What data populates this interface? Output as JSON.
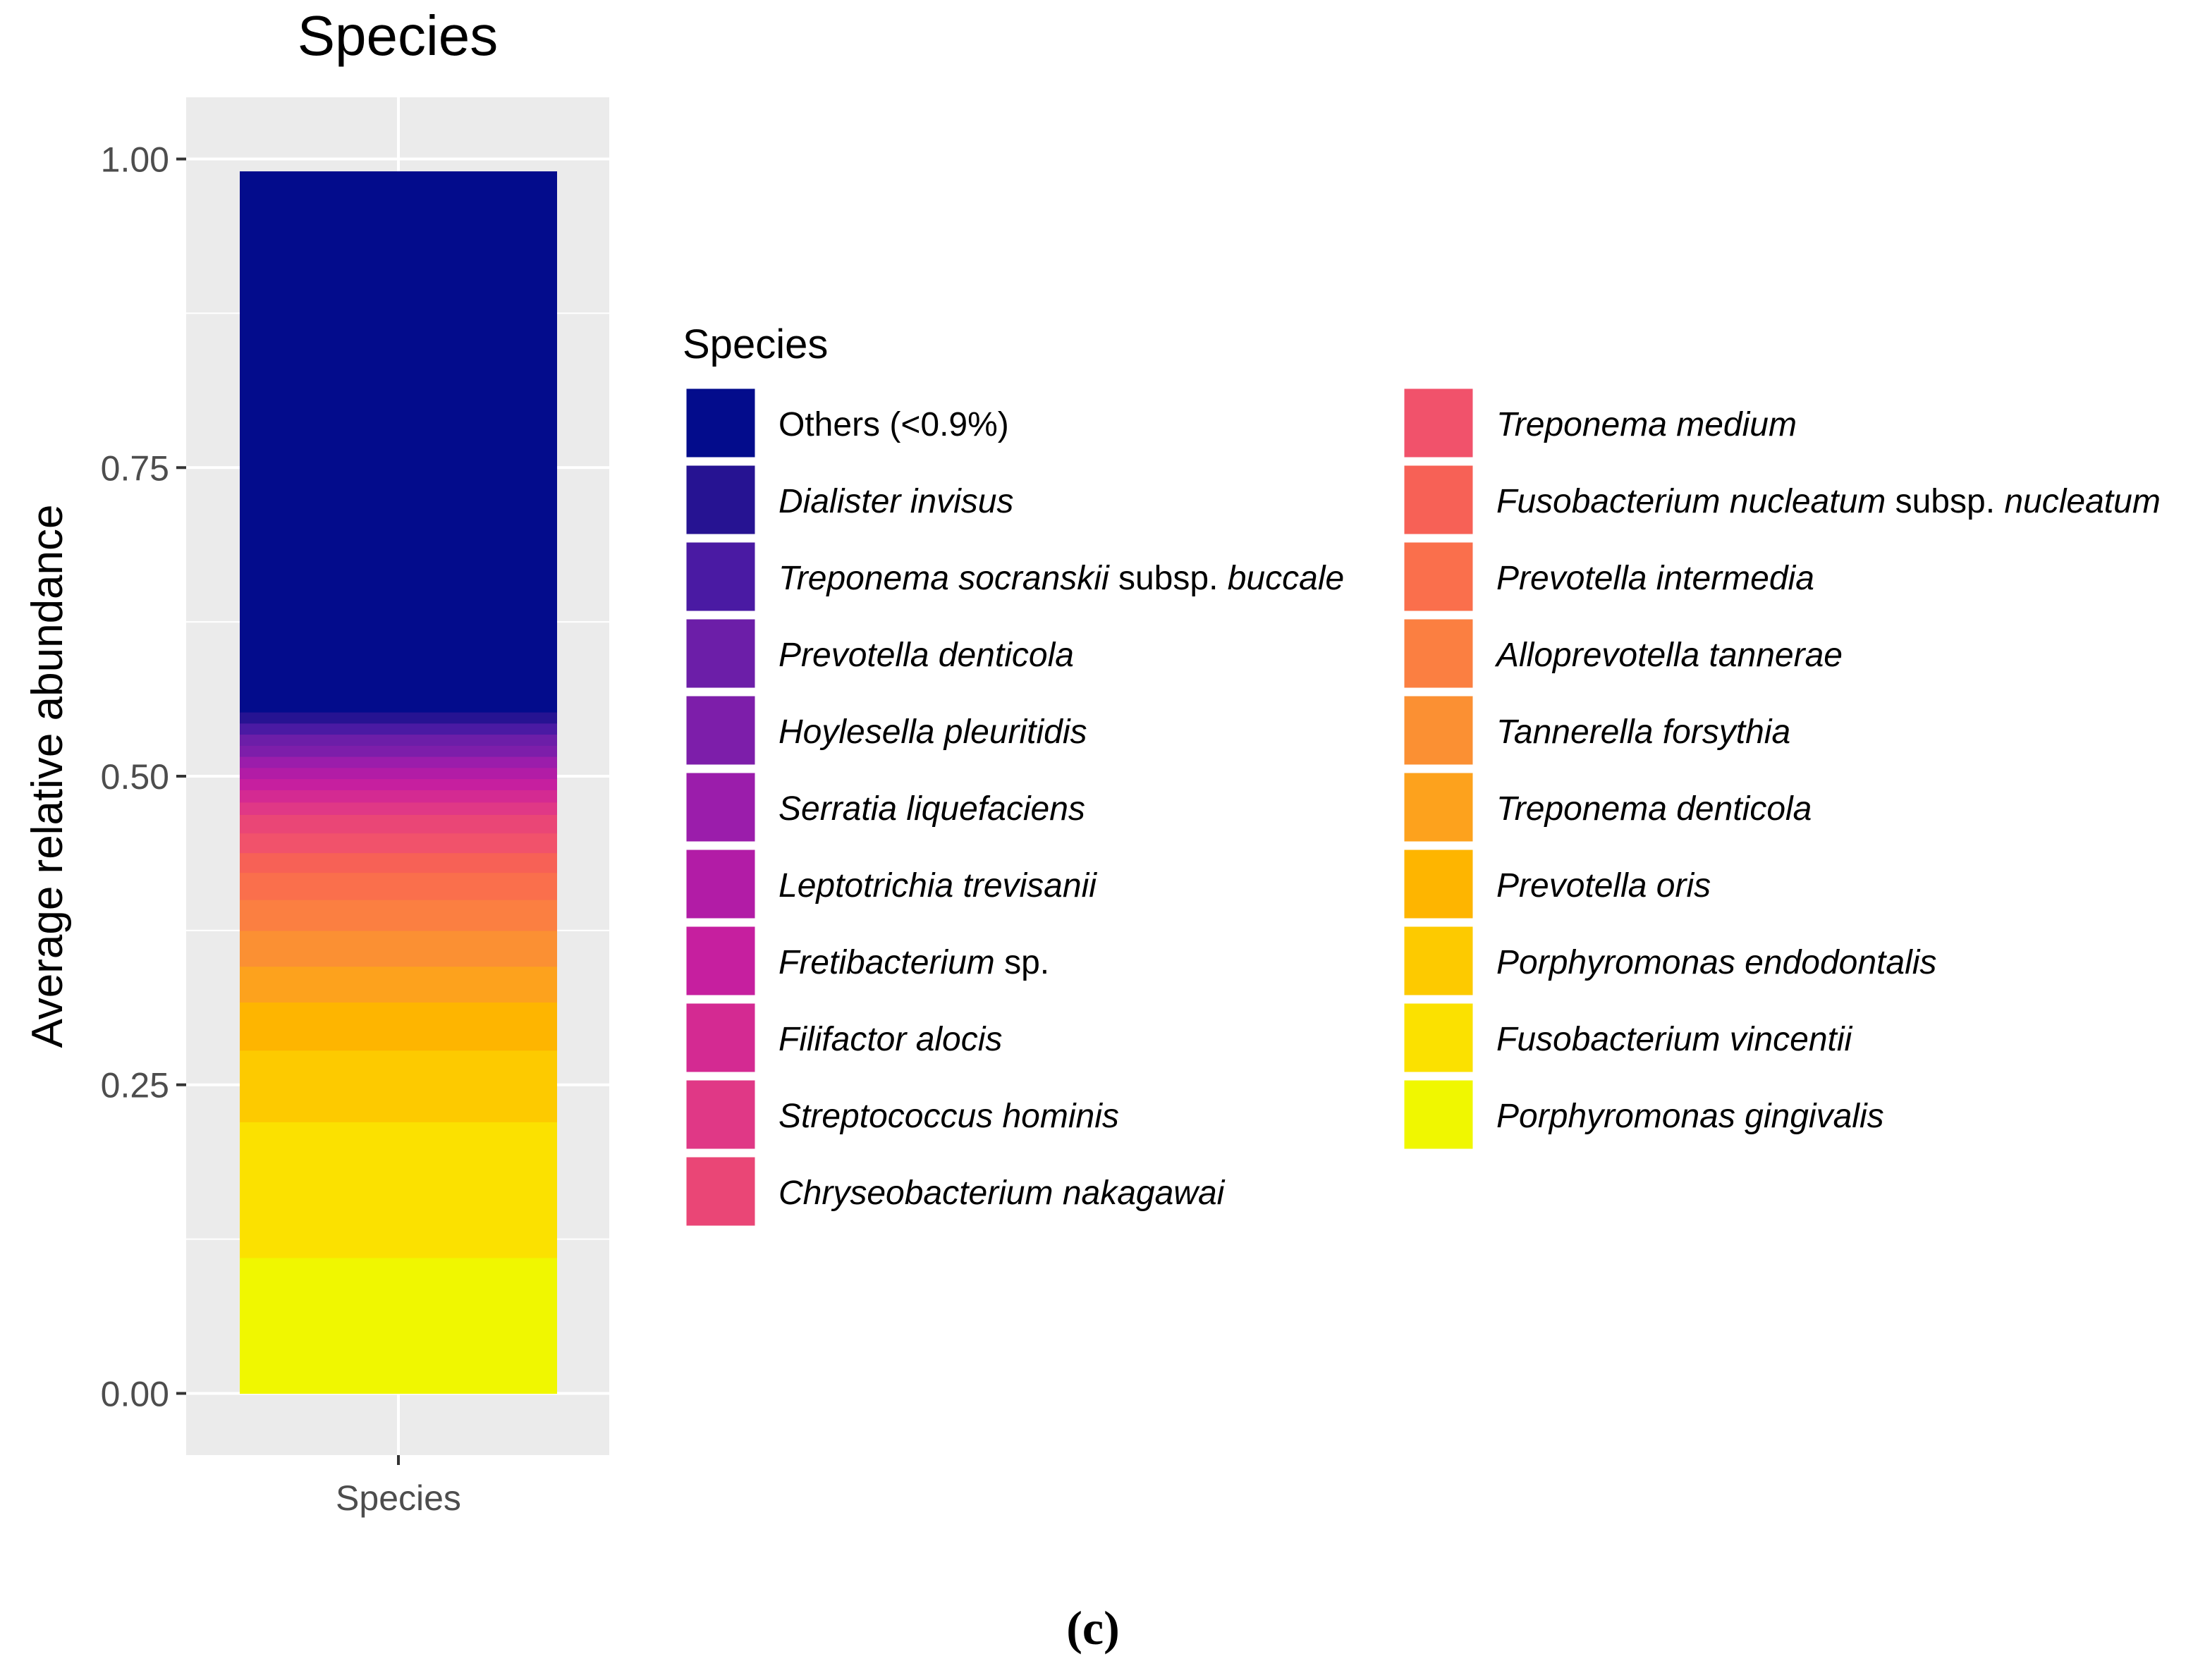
{
  "caption": "(c)",
  "chart_data": {
    "type": "bar",
    "stacked": true,
    "title": "Species",
    "xlabel": "",
    "ylabel": "Average relative abundance",
    "categories": [
      "Species"
    ],
    "ylim": [
      -0.05,
      1.05
    ],
    "yticks": [
      "0.00",
      "0.25",
      "0.50",
      "0.75",
      "1.00"
    ],
    "ytick_values": [
      0,
      0.25,
      0.5,
      0.75,
      1.0
    ],
    "grid": true,
    "legend_title": "Species",
    "legend_position": "right",
    "series": [
      {
        "name": "Porphyromonas gingivalis",
        "italic_parts": [
          {
            "t": "Porphyromonas gingivalis",
            "i": true
          }
        ],
        "color": "#f0f700",
        "values": [
          0.11
        ]
      },
      {
        "name": "Fusobacterium vincentii",
        "italic_parts": [
          {
            "t": "Fusobacterium vincentii",
            "i": true
          }
        ],
        "color": "#fbe100",
        "values": [
          0.11
        ]
      },
      {
        "name": "Porphyromonas endodontalis",
        "italic_parts": [
          {
            "t": "Porphyromonas endodontalis",
            "i": true
          }
        ],
        "color": "#fdca00",
        "values": [
          0.058
        ]
      },
      {
        "name": "Prevotella oris",
        "italic_parts": [
          {
            "t": "Prevotella oris",
            "i": true
          }
        ],
        "color": "#feb500",
        "values": [
          0.039
        ]
      },
      {
        "name": "Treponema denticola",
        "italic_parts": [
          {
            "t": "Treponema denticola",
            "i": true
          }
        ],
        "color": "#fda21d",
        "values": [
          0.029
        ]
      },
      {
        "name": "Tannerella forsythia",
        "italic_parts": [
          {
            "t": "Tannerella forsythia",
            "i": true
          }
        ],
        "color": "#fb9033",
        "values": [
          0.029
        ]
      },
      {
        "name": "Alloprevotella tannerae",
        "italic_parts": [
          {
            "t": "Alloprevotella tannerae",
            "i": true
          }
        ],
        "color": "#fb7f41",
        "values": [
          0.025
        ]
      },
      {
        "name": "Prevotella intermedia",
        "italic_parts": [
          {
            "t": "Prevotella intermedia",
            "i": true
          }
        ],
        "color": "#fa6f4c",
        "values": [
          0.022
        ]
      },
      {
        "name": "Fusobacterium nucleatum subsp. nucleatum",
        "italic_parts": [
          {
            "t": "Fusobacterium nucleatum",
            "i": true
          },
          {
            "t": " subsp. ",
            "i": false
          },
          {
            "t": "nucleatum",
            "i": true
          }
        ],
        "color": "#f76156",
        "values": [
          0.016
        ]
      },
      {
        "name": "Treponema medium",
        "italic_parts": [
          {
            "t": "Treponema medium",
            "i": true
          }
        ],
        "color": "#f1526b",
        "values": [
          0.016
        ]
      },
      {
        "name": "Chryseobacterium nakagawai",
        "italic_parts": [
          {
            "t": "Chryseobacterium nakagawai",
            "i": true
          }
        ],
        "color": "#ea4676",
        "values": [
          0.015
        ]
      },
      {
        "name": "Streptococcus hominis",
        "italic_parts": [
          {
            "t": "Streptococcus hominis",
            "i": true
          }
        ],
        "color": "#e03886",
        "values": [
          0.01
        ]
      },
      {
        "name": "Filifactor alocis",
        "italic_parts": [
          {
            "t": "Filifactor alocis",
            "i": true
          }
        ],
        "color": "#d42a92",
        "values": [
          0.01
        ]
      },
      {
        "name": "Fretibacterium sp.",
        "italic_parts": [
          {
            "t": "Fretibacterium",
            "i": true
          },
          {
            "t": " sp.",
            "i": false
          }
        ],
        "color": "#c61f9f",
        "values": [
          0.009
        ]
      },
      {
        "name": "Leptotrichia trevisanii",
        "italic_parts": [
          {
            "t": "Leptotrichia trevisanii",
            "i": true
          }
        ],
        "color": "#b21ca6",
        "values": [
          0.009
        ]
      },
      {
        "name": "Serratia liquefaciens",
        "italic_parts": [
          {
            "t": "Serratia liquefaciens",
            "i": true
          }
        ],
        "color": "#9b1dab",
        "values": [
          0.009
        ]
      },
      {
        "name": "Hoylesella pleuritidis",
        "italic_parts": [
          {
            "t": "Hoylesella pleuritidis",
            "i": true
          }
        ],
        "color": "#7d1eaa",
        "values": [
          0.009
        ]
      },
      {
        "name": "Prevotella denticola",
        "italic_parts": [
          {
            "t": "Prevotella denticola",
            "i": true
          }
        ],
        "color": "#6c1ea8",
        "values": [
          0.009
        ]
      },
      {
        "name": "Treponema socranskii subsp. buccale",
        "italic_parts": [
          {
            "t": "Treponema socranskii",
            "i": true
          },
          {
            "t": " subsp. ",
            "i": false
          },
          {
            "t": "buccale",
            "i": true
          }
        ],
        "color": "#4a1aa3",
        "values": [
          0.009
        ]
      },
      {
        "name": "Dialister invisus",
        "italic_parts": [
          {
            "t": "Dialister invisus",
            "i": true
          }
        ],
        "color": "#261392",
        "values": [
          0.009
        ]
      },
      {
        "name": "Others (<0.9%)",
        "italic_parts": [
          {
            "t": "Others (<0.9%)",
            "i": false
          }
        ],
        "color": "#030c8c",
        "values": [
          0.438
        ]
      }
    ],
    "legend_order": [
      "Others (<0.9%)",
      "Dialister invisus",
      "Treponema socranskii subsp. buccale",
      "Prevotella denticola",
      "Hoylesella pleuritidis",
      "Serratia liquefaciens",
      "Leptotrichia trevisanii",
      "Fretibacterium sp.",
      "Filifactor alocis",
      "Streptococcus hominis",
      "Chryseobacterium nakagawai",
      "Treponema medium",
      "Fusobacterium nucleatum subsp. nucleatum",
      "Prevotella intermedia",
      "Alloprevotella tannerae",
      "Tannerella forsythia",
      "Treponema denticola",
      "Prevotella oris",
      "Porphyromonas endodontalis",
      "Fusobacterium vincentii",
      "Porphyromonas gingivalis"
    ]
  }
}
